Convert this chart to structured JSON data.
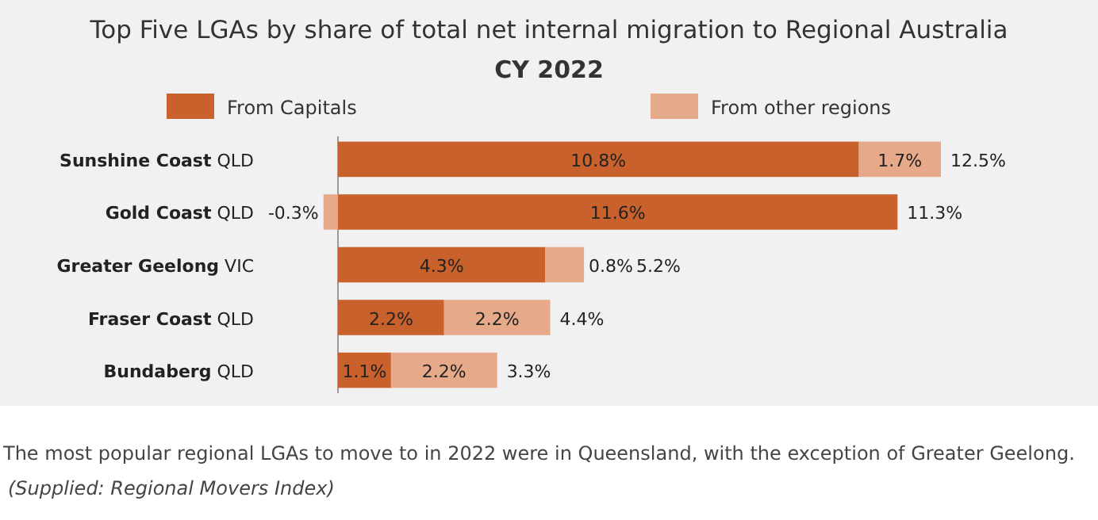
{
  "chart_data": {
    "type": "bar",
    "orientation": "horizontal",
    "stacked": true,
    "title": "Top Five LGAs by share of total net internal migration to Regional Australia",
    "subtitle": "CY 2022",
    "categories": [
      "Sunshine Coast QLD",
      "Gold Coast QLD",
      "Greater Geelong VIC",
      "Fraser Coast QLD",
      "Bundaberg QLD"
    ],
    "series": [
      {
        "name": "From Capitals",
        "color": "#c8612b",
        "values": [
          10.8,
          11.6,
          4.3,
          2.2,
          1.1
        ],
        "value_labels": [
          "10.8%",
          "11.6%",
          "4.3%",
          "2.2%",
          "1.1%"
        ]
      },
      {
        "name": "From other regions",
        "color": "#e6a98a",
        "values": [
          1.7,
          -0.3,
          0.8,
          2.2,
          2.2
        ],
        "value_labels": [
          "1.7%",
          "-0.3%",
          "0.8%",
          "2.2%",
          "2.2%"
        ]
      }
    ],
    "totals": [
      "12.5%",
      "11.3%",
      "5.2%",
      "4.4%",
      "3.3%"
    ],
    "legend": "top",
    "annotations": [
      "The most popular regional LGAs to move to in 2022 were in Queensland, with the exception of Greater Geelong.",
      "(Supplied: Regional Movers Index)"
    ]
  }
}
